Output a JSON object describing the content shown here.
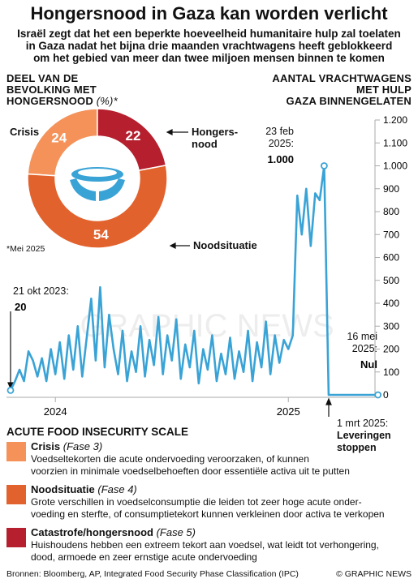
{
  "header": {
    "title": "Hongersnood in Gaza kan worden verlicht",
    "subtitle": "Israël zegt dat het een beperkte hoeveelheid humanitaire hulp zal toelaten\nin Gaza nadat het bijna drie maanden vrachtwagens heeft geblokkeerd\nom het gebied van meer dan twee miljoen mensen binnen te komen"
  },
  "chart_data": [
    {
      "type": "pie",
      "title": "DEEL VAN DE\nBEVOLKING MET\nHONGERSNOOD",
      "unit": "(%)*",
      "footnote": "*Mei 2025",
      "categories": [
        "Crisis",
        "Hongers-\nnood",
        "Noodsituatie"
      ],
      "values": [
        24,
        22,
        54
      ],
      "colors": [
        "#f4925a",
        "#b51f2e",
        "#e2622d"
      ]
    },
    {
      "type": "line",
      "title": "AANTAL  VRACHTWAGENS\nMET HULP\nGAZA BINNENGELATEN",
      "color": "#3aa3d6",
      "values": [
        20,
        60,
        110,
        60,
        190,
        150,
        80,
        160,
        60,
        200,
        90,
        230,
        70,
        260,
        110,
        300,
        80,
        250,
        420,
        150,
        470,
        120,
        350,
        200,
        90,
        280,
        60,
        190,
        100,
        300,
        80,
        240,
        130,
        340,
        90,
        260,
        150,
        330,
        70,
        220,
        120,
        280,
        50,
        200,
        110,
        260,
        60,
        180,
        90,
        250,
        70,
        190,
        100,
        280,
        60,
        230,
        120,
        320,
        90,
        260,
        140,
        240,
        200,
        260,
        870,
        700,
        900,
        650,
        880,
        850,
        1000,
        0,
        0,
        0,
        0,
        0,
        0,
        0,
        0,
        0,
        0,
        0,
        0
      ],
      "value_labels": [
        "20",
        null,
        null,
        null,
        null,
        null,
        null,
        null,
        null,
        null,
        null,
        null,
        null,
        null,
        null,
        null,
        null,
        null,
        null,
        null,
        null,
        null,
        null,
        null,
        null,
        null,
        null,
        null,
        null,
        null,
        null,
        null,
        null,
        null,
        null,
        null,
        null,
        null,
        null,
        null,
        null,
        null,
        null,
        null,
        null,
        null,
        null,
        null,
        null,
        null,
        null,
        null,
        null,
        null,
        null,
        null,
        null,
        null,
        null,
        null,
        null,
        null,
        null,
        null,
        null,
        null,
        null,
        null,
        null,
        null,
        "1.000",
        null,
        null,
        null,
        null,
        null,
        null,
        null,
        null,
        null,
        null,
        null,
        "Nul"
      ],
      "xticks": [
        {
          "value": 10,
          "label": "2024"
        },
        {
          "value": 62,
          "label": "2025"
        }
      ],
      "ylim": [
        0,
        1200
      ],
      "yticks": [
        0,
        100,
        200,
        300,
        400,
        500,
        600,
        700,
        800,
        900,
        {
          "value": 1000,
          "label": "1.000"
        },
        {
          "value": 1100,
          "label": "1.100"
        },
        {
          "value": 1200,
          "label": "1.200"
        }
      ],
      "annotations": [
        "21 okt 2023:",
        "23 feb\n2025:",
        "16 mei\n2025:",
        "1 mrt 2025:",
        "Leveringen\nstoppen"
      ]
    }
  ],
  "scale": {
    "title": "ACUTE FOOD INSECURITY SCALE",
    "items": [
      {
        "name": "Crisis",
        "phase": "(Fase 3)",
        "color": "#f4925a",
        "description": "Voedseltekorten die acute ondervoeding veroorzaken, of kunnen\nvoorzien in minimale voedselbehoeften door essentiële activa uit te putten"
      },
      {
        "name": "Noodsituatie",
        "phase": "(Fase 4)",
        "color": "#e2622d",
        "description": "Grote verschillen in voedselconsumptie die leiden tot zeer hoge acute onder-\nvoeding en sterfte, of consumptietekort kunnen verkleinen door activa te verkopen"
      },
      {
        "name": "Catastrofe/hongersnood",
        "phase": "(Fase 5)",
        "color": "#b51f2e",
        "description": "Huishoudens hebben een extreem tekort aan voedsel, wat leidt tot verhongering,\ndood, armoede en zeer ernstige acute ondervoeding"
      }
    ]
  },
  "footer": {
    "sources": "Bronnen: Bloomberg, AP, Integrated Food Security Phase Classification (IPC)",
    "credit": "© GRAPHIC NEWS",
    "watermark": "GRAPHIC NEWS"
  }
}
